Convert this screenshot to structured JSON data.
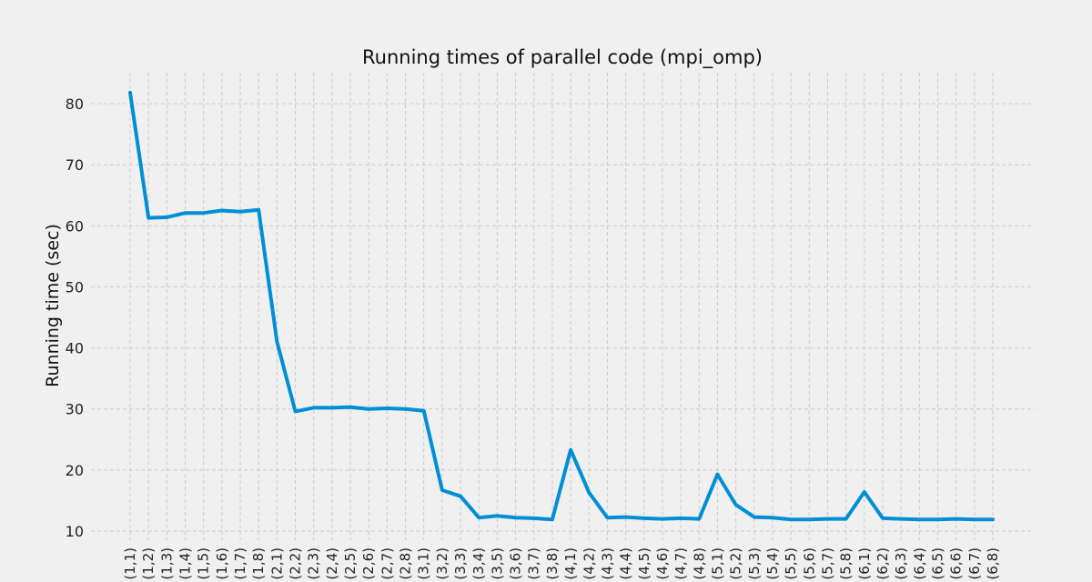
{
  "chart_data": {
    "type": "line",
    "title": "Running times of parallel code (mpi_omp)",
    "xlabel": "",
    "ylabel": "Running time (sec)",
    "ylim": [
      7,
      85
    ],
    "yticks": [
      10,
      20,
      30,
      40,
      50,
      60,
      70,
      80
    ],
    "grid": true,
    "categories": [
      "(1,1)",
      "(1,2)",
      "(1,3)",
      "(1,4)",
      "(1,5)",
      "(1,6)",
      "(1,7)",
      "(1,8)",
      "(2,1)",
      "(2,2)",
      "(2,3)",
      "(2,4)",
      "(2,5)",
      "(2,6)",
      "(2,7)",
      "(2,8)",
      "(3,1)",
      "(3,2)",
      "(3,3)",
      "(3,4)",
      "(3,5)",
      "(3,6)",
      "(3,7)",
      "(3,8)",
      "(4,1)",
      "(4,2)",
      "(4,3)",
      "(4,4)",
      "(4,5)",
      "(4,6)",
      "(4,7)",
      "(4,8)",
      "(5,1)",
      "(5,2)",
      "(5,3)",
      "(5,4)",
      "(5,5)",
      "(5,6)",
      "(5,7)",
      "(5,8)",
      "(6,1)",
      "(6,2)",
      "(6,3)",
      "(6,4)",
      "(6,5)",
      "(6,6)",
      "(6,7)",
      "(6,8)"
    ],
    "series": [
      {
        "color": "#008fd5",
        "values": [
          81.8,
          61.3,
          61.4,
          62.1,
          62.1,
          62.5,
          62.3,
          62.6,
          41.0,
          29.6,
          30.2,
          30.2,
          30.3,
          30.0,
          30.1,
          30.0,
          29.7,
          16.7,
          15.7,
          12.2,
          12.5,
          12.2,
          12.1,
          11.9,
          23.3,
          16.3,
          12.2,
          12.3,
          12.1,
          12.0,
          12.1,
          12.0,
          19.3,
          14.3,
          12.3,
          12.2,
          11.9,
          11.9,
          12.0,
          12.0,
          16.4,
          12.1,
          12.0,
          11.9,
          11.9,
          12.0,
          11.9,
          11.9
        ]
      }
    ],
    "colors": {
      "background": "#f0f0f0",
      "grid": "#cbcbcb",
      "line": "#008fd5"
    }
  }
}
